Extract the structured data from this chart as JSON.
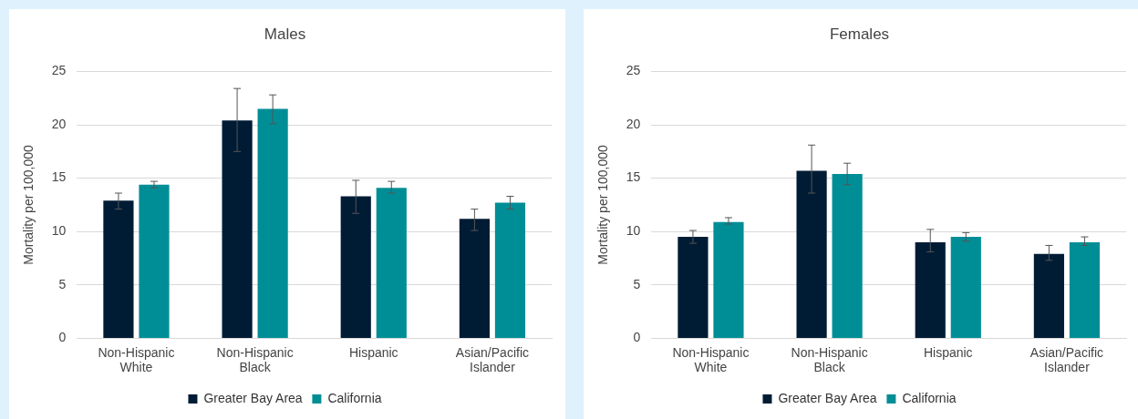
{
  "chart_data": [
    {
      "type": "bar",
      "title": "Males",
      "ylabel": "Mortality per 100,000",
      "categories": [
        "Non-Hispanic White",
        "Non-Hispanic Black",
        "Hispanic",
        "Asian/Pacific Islander"
      ],
      "series": [
        {
          "name": "Greater Bay Area",
          "color": "#001c35",
          "values": [
            12.9,
            20.4,
            13.3,
            11.2
          ],
          "errors": [
            [
              12.1,
              13.6
            ],
            [
              17.5,
              23.4
            ],
            [
              11.7,
              14.8
            ],
            [
              10.1,
              12.1
            ]
          ]
        },
        {
          "name": "California",
          "color": "#008e96",
          "values": [
            14.4,
            21.5,
            14.1,
            12.7
          ],
          "errors": [
            [
              14.1,
              14.7
            ],
            [
              20.1,
              22.8
            ],
            [
              13.6,
              14.7
            ],
            [
              12.1,
              13.3
            ]
          ]
        }
      ],
      "ylim": [
        0,
        25
      ],
      "yticks": [
        0,
        5,
        10,
        15,
        20,
        25
      ],
      "grid": "y",
      "legend": "bottom"
    },
    {
      "type": "bar",
      "title": "Females",
      "ylabel": "Mortality per 100,000",
      "categories": [
        "Non-Hispanic White",
        "Non-Hispanic Black",
        "Hispanic",
        "Asian/Pacific Islander"
      ],
      "series": [
        {
          "name": "Greater Bay Area",
          "color": "#001c35",
          "values": [
            9.5,
            15.7,
            9.0,
            7.9
          ],
          "errors": [
            [
              8.9,
              10.1
            ],
            [
              13.6,
              18.1
            ],
            [
              8.1,
              10.2
            ],
            [
              7.3,
              8.7
            ]
          ]
        },
        {
          "name": "California",
          "color": "#008e96",
          "values": [
            10.9,
            15.4,
            9.5,
            9.0
          ],
          "errors": [
            [
              10.7,
              11.3
            ],
            [
              14.4,
              16.4
            ],
            [
              9.1,
              9.9
            ],
            [
              8.7,
              9.5
            ]
          ]
        }
      ],
      "ylim": [
        0,
        25
      ],
      "yticks": [
        0,
        5,
        10,
        15,
        20,
        25
      ],
      "grid": "y",
      "legend": "bottom"
    }
  ]
}
